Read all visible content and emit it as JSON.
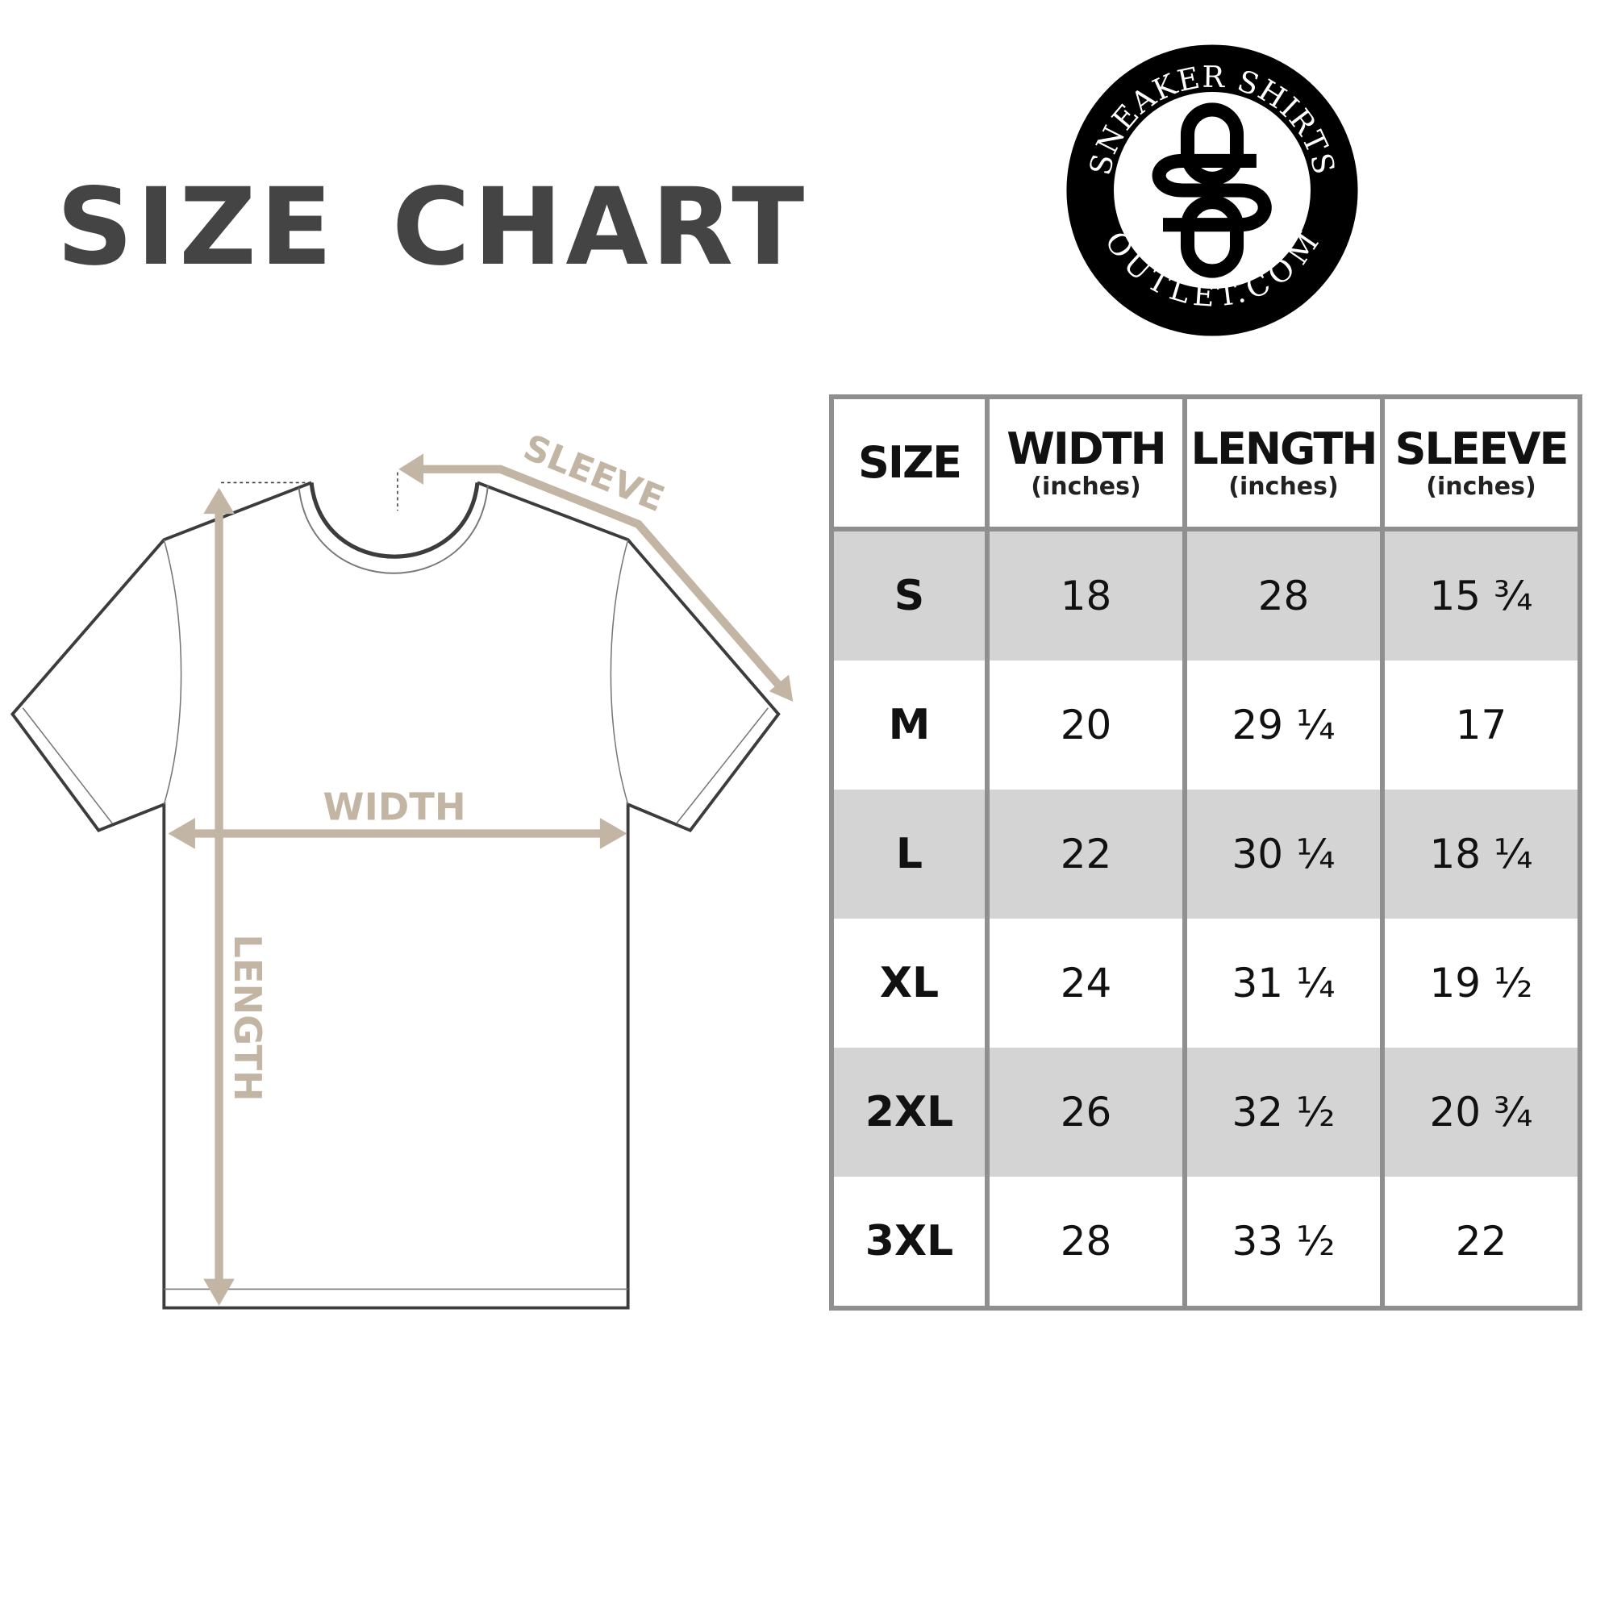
{
  "title": "SIZE CHART",
  "logo": {
    "top_text": "SNEAKER SHIRTS",
    "bottom_text": "OUTLET.COM",
    "monogram": "SO"
  },
  "diagram": {
    "sleeve_label": "SLEEVE",
    "width_label": "WIDTH",
    "length_label": "LENGTH",
    "accent_color": "#c2b5a4",
    "outline_color": "#3c3c3c"
  },
  "table": {
    "headers": [
      {
        "main": "SIZE",
        "sub": ""
      },
      {
        "main": "WIDTH",
        "sub": "(inches)"
      },
      {
        "main": "LENGTH",
        "sub": "(inches)"
      },
      {
        "main": "SLEEVE",
        "sub": "(inches)"
      }
    ],
    "rows": [
      [
        "S",
        "18",
        "28",
        "15 ¾"
      ],
      [
        "M",
        "20",
        "29 ¼",
        "17"
      ],
      [
        "L",
        "22",
        "30 ¼",
        "18 ¼"
      ],
      [
        "XL",
        "24",
        "31 ¼",
        "19 ½"
      ],
      [
        "2XL",
        "26",
        "32 ½",
        "20 ¾"
      ],
      [
        "3XL",
        "28",
        "33 ½",
        "22"
      ]
    ],
    "shade_color": "#d4d4d4",
    "border_color": "#8f8f8f"
  }
}
